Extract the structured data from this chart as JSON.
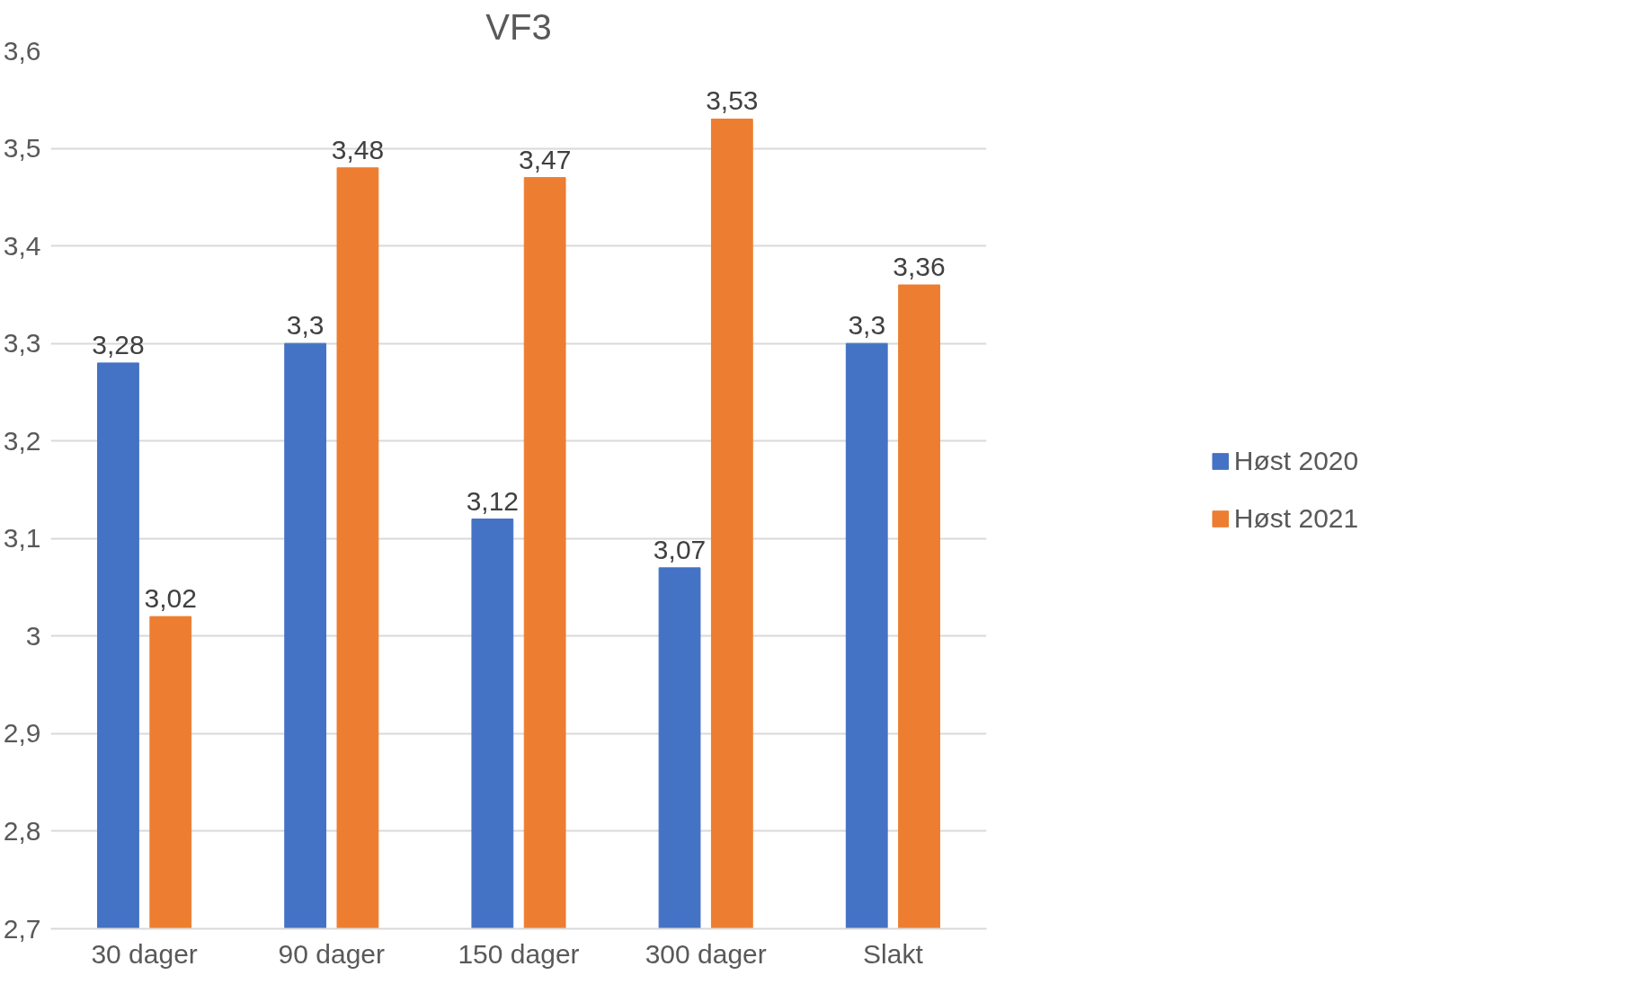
{
  "chart_data": {
    "type": "bar",
    "title": "VF3",
    "categories": [
      "30 dager",
      "90 dager",
      "150 dager",
      "300 dager",
      "Slakt"
    ],
    "series": [
      {
        "name": "Høst 2020",
        "color": "#4472c4",
        "values": [
          3.28,
          3.3,
          3.12,
          3.07,
          3.3
        ],
        "value_labels": [
          "3,28",
          "3,3",
          "3,12",
          "3,07",
          "3,3"
        ]
      },
      {
        "name": "Høst 2021",
        "color": "#ed7d31",
        "values": [
          3.02,
          3.48,
          3.47,
          3.53,
          3.36
        ],
        "value_labels": [
          "3,02",
          "3,48",
          "3,47",
          "3,53",
          "3,36"
        ]
      }
    ],
    "ylim": [
      2.7,
      3.6
    ],
    "yticks": [
      {
        "value": 2.7,
        "label": "2,7"
      },
      {
        "value": 2.8,
        "label": "2,8"
      },
      {
        "value": 2.9,
        "label": "2,9"
      },
      3,
      {
        "value": 3.1,
        "label": "3,1"
      },
      {
        "value": 3.2,
        "label": "3,2"
      },
      {
        "value": 3.3,
        "label": "3,3"
      },
      {
        "value": 3.4,
        "label": "3,4"
      },
      {
        "value": 3.5,
        "label": "3,5"
      },
      {
        "value": 3.6,
        "label": "3,6"
      }
    ],
    "grid": "y",
    "legend": "right"
  }
}
